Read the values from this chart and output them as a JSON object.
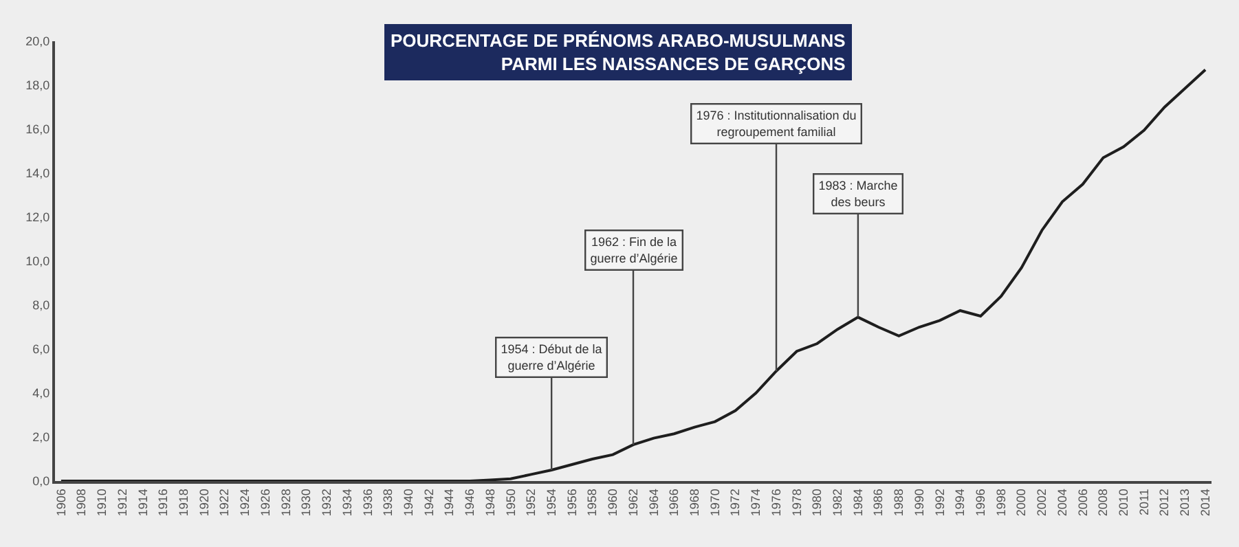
{
  "chart_data": {
    "type": "line",
    "title": "POURCENTAGE DE PRÉNOMS ARABO-MUSULMANS\nPARMI LES NAISSANCES DE GARÇONS",
    "categories": [
      "1906",
      "1908",
      "1910",
      "1912",
      "1914",
      "1916",
      "1918",
      "1920",
      "1922",
      "1924",
      "1926",
      "1928",
      "1930",
      "1932",
      "1934",
      "1936",
      "1938",
      "1940",
      "1942",
      "1944",
      "1946",
      "1948",
      "1950",
      "1952",
      "1954",
      "1956",
      "1958",
      "1960",
      "1962",
      "1964",
      "1966",
      "1968",
      "1970",
      "1972",
      "1974",
      "1976",
      "1978",
      "1980",
      "1982",
      "1984",
      "1986",
      "1988",
      "1990",
      "1992",
      "1994",
      "1996",
      "1998",
      "2000",
      "2002",
      "2004",
      "2006",
      "2008",
      "2010",
      "2011",
      "2012",
      "2013",
      "2014"
    ],
    "series": [
      {
        "color": "#1e1e1e",
        "values": [
          0,
          0,
          0,
          0,
          0,
          0,
          0,
          0,
          0,
          0,
          0,
          0,
          0,
          0,
          0,
          0,
          0,
          0,
          0,
          0,
          0,
          0.05,
          0.1,
          0.3,
          0.5,
          0.75,
          1.0,
          1.2,
          1.65,
          1.95,
          2.15,
          2.45,
          2.7,
          3.2,
          4.0,
          5.0,
          5.9,
          6.25,
          6.9,
          7.45,
          7.0,
          6.6,
          7.0,
          7.3,
          7.75,
          7.5,
          8.4,
          9.7,
          11.4,
          12.7,
          13.5,
          14.7,
          15.2,
          15.95,
          17.0,
          17.85,
          18.7
        ]
      }
    ],
    "ylim": [
      0,
      20
    ],
    "yticks": [
      {
        "value": 0,
        "label": "0,0"
      },
      {
        "value": 2,
        "label": "2,0"
      },
      {
        "value": 4,
        "label": "4,0"
      },
      {
        "value": 6,
        "label": "6,0"
      },
      {
        "value": 8,
        "label": "8,0"
      },
      {
        "value": 10,
        "label": "10,0"
      },
      {
        "value": 12,
        "label": "12,0"
      },
      {
        "value": 14,
        "label": "14,0"
      },
      {
        "value": 16,
        "label": "16,0"
      },
      {
        "value": 18,
        "label": "18,0"
      },
      {
        "value": 20,
        "label": "20,0"
      }
    ],
    "annotations": [
      {
        "text": "1954 : Début de la\nguerre d’Algérie",
        "x": "1954",
        "y": 0.5
      },
      {
        "text": "1962 : Fin de la\nguerre d’Algérie",
        "x": "1962",
        "y": 1.65
      },
      {
        "text": "1976 : Institutionnalisation du\nregroupement familial",
        "x": "1976",
        "y": 5.0
      },
      {
        "text": "1983 : Marche\ndes beurs",
        "x": "1984",
        "y": 7.45
      }
    ],
    "grid": false,
    "marker": "none",
    "line_style": "solid"
  }
}
